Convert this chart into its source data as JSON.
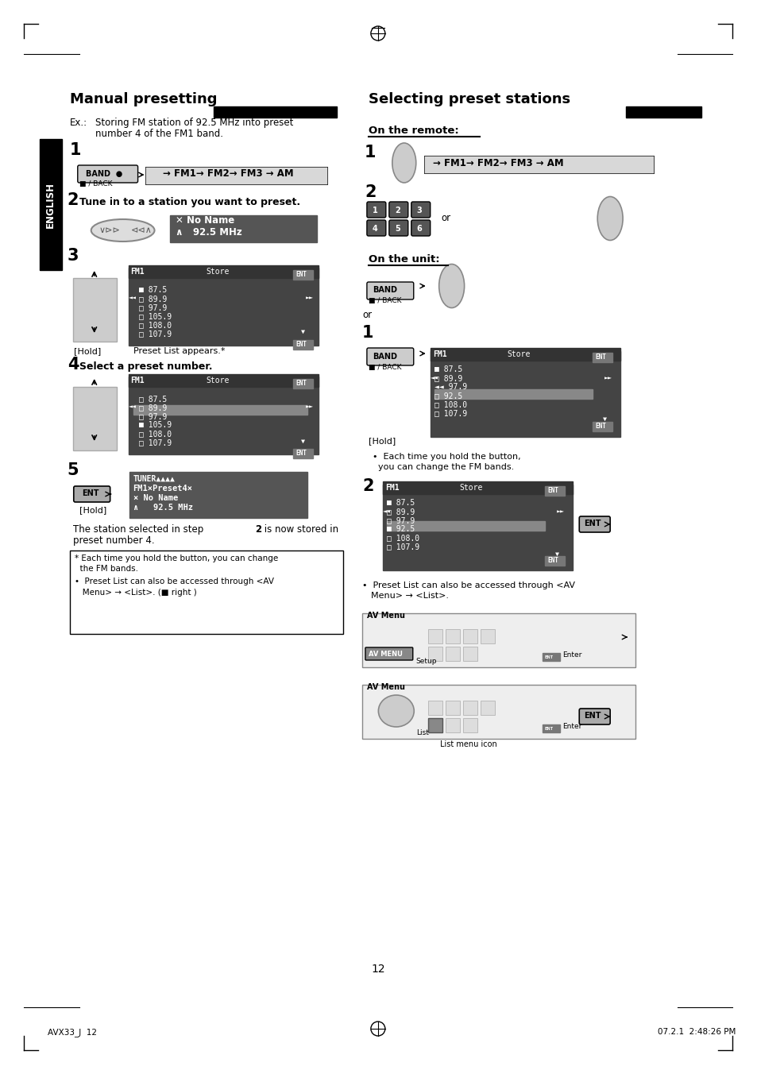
{
  "page_number": "12",
  "footer_left": "AVX33_J  12",
  "footer_right": "07.2.1  2:48:26 PM",
  "bg_color": "#ffffff",
  "text_color": "#000000",
  "left_section_title": "Manual presetting",
  "right_section_title": "Selecting preset stations",
  "english_label": "ENGLISH",
  "left_content": {
    "example_text": "Ex.:    Storing FM station of 92.5 MHz into preset\n         number 4 of the FM1 band.",
    "step1_label": "1",
    "step1_band_text": "BAND  ■\n■ / BACK",
    "band_display": "→ FM1→ FM2→ FM3 → AM",
    "step2_label": "2",
    "step2_text": "Tune in to a station you want to preset.",
    "step2_display": "✕ No Name\n∧  92.5 MHz",
    "step3_label": "3",
    "step3_hold": "[Hold]",
    "step3_note": "Preset List appears.*",
    "step3_screen_title": "FM1                    Store",
    "step3_screen_lines": [
      "■ 87.5",
      "□ 89.9",
      "◄◄ □ 97.9",
      "□ 105.9",
      "□ 108.0",
      "□ 107.9"
    ],
    "step4_label": "4",
    "step4_text": "Select a preset number.",
    "step4_screen_title": "FM1                    Store",
    "step4_screen_lines": [
      "□ 87.5",
      "□ 89.9",
      "◄◄ □ 97.9",
      "□ 105.9",
      "□ 108.0",
      "□ 107.9"
    ],
    "step4_selected": "■ 105.9",
    "step5_label": "5",
    "step5_hold": "[Hold]",
    "step5_ent": "ENT",
    "step5_display": "TUNER\n FM1×Preset4×\n× No Name\n∧  92.5 MHz",
    "step5_conclusion": "The station selected in step 2 is now stored in\npreset number 4.",
    "footnote": "* Each time you hold the button, you can change\n  the FM bands.\n•  Preset List can also be accessed through <AV\n   Menu> → <List>. (■ right )"
  },
  "right_content": {
    "on_remote_label": "On the remote:",
    "remote_step1": "1",
    "remote_band_display": "→ FM1→ FM2→ FM3 → AM",
    "remote_step2": "2",
    "remote_buttons": [
      "1",
      "2",
      "3",
      "4",
      "5",
      "6"
    ],
    "remote_or": "or",
    "on_unit_label": "On the unit:",
    "unit_band_text": "BAND\n■ / BACK",
    "unit_or": "or",
    "unit_step1": "1",
    "unit_hold": "[Hold]",
    "unit_note": "•  Each time you hold the button,\n    you can change the FM bands.",
    "unit_step2": "2",
    "unit_ent": "ENT",
    "unit_screen_title": "FM1                    Store",
    "unit_screen_lines": [
      "87.5",
      "89.9",
      "97.9",
      "92.5",
      "108.0",
      "107.9"
    ],
    "preset_note": "•  Preset List can also be accessed through <AV\n   Menu> → <List>.",
    "list_menu_icon_label": "List menu icon"
  }
}
